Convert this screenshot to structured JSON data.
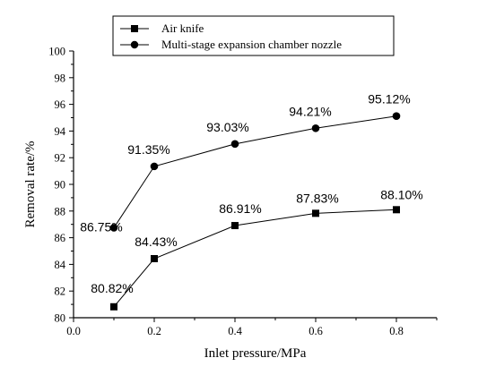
{
  "chart_data": {
    "type": "line",
    "xlabel": "Inlet pressure/MPa",
    "ylabel": "Removal rate/%",
    "xlim": [
      0.0,
      0.9
    ],
    "ylim": [
      80,
      100
    ],
    "x_ticks": [
      "0.0",
      "0.2",
      "0.4",
      "0.6",
      "0.8"
    ],
    "y_ticks": [
      "80",
      "82",
      "84",
      "86",
      "88",
      "90",
      "92",
      "94",
      "96",
      "98",
      "100"
    ],
    "grid": false,
    "legend_position": "top-center",
    "series": [
      {
        "name": "Air knife",
        "marker": "square",
        "x": [
          0.1,
          0.2,
          0.4,
          0.6,
          0.8
        ],
        "values": [
          80.82,
          84.43,
          86.91,
          87.83,
          88.1
        ],
        "labels": [
          "80.82%",
          "84.43%",
          "86.91%",
          "87.83%",
          "88.10%"
        ]
      },
      {
        "name": "Multi-stage expansion chamber nozzle",
        "marker": "circle",
        "x": [
          0.1,
          0.2,
          0.4,
          0.6,
          0.8
        ],
        "values": [
          86.75,
          91.35,
          93.03,
          94.21,
          95.12
        ],
        "labels": [
          "86.75%",
          "91.35%",
          "93.03%",
          "94.21%",
          "95.12%"
        ]
      }
    ]
  }
}
